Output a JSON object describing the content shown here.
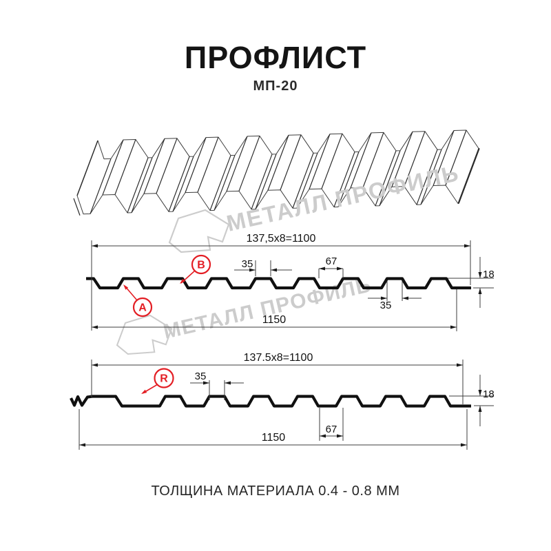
{
  "header": {
    "title": "ПРОФЛИСТ",
    "subtitle": "МП-20"
  },
  "watermarks": {
    "text": "МЕТАЛЛ ПРОФИЛЬ"
  },
  "footer": {
    "caption": "ТОЛЩИНА МАТЕРИАЛА 0.4 - 0.8 ММ"
  },
  "colors": {
    "accent_red": "#e31e24",
    "dim_line": "#3d3d3d",
    "profile_line": "#101010",
    "watermark_gray": "#cccccc"
  },
  "sections": [
    {
      "id": "profile-ab",
      "markers": {
        "a": "A",
        "b": "B"
      },
      "dims": {
        "pitch": "137,5x8=1100",
        "crest_top": "35",
        "valley": "67",
        "height": "18",
        "crest_bottom": "35",
        "overall": "1150"
      }
    },
    {
      "id": "profile-r",
      "markers": {
        "r": "R"
      },
      "dims": {
        "pitch": "137.5x8=1100",
        "crest_top": "35",
        "height": "18",
        "valley": "67",
        "overall": "1150"
      }
    }
  ]
}
